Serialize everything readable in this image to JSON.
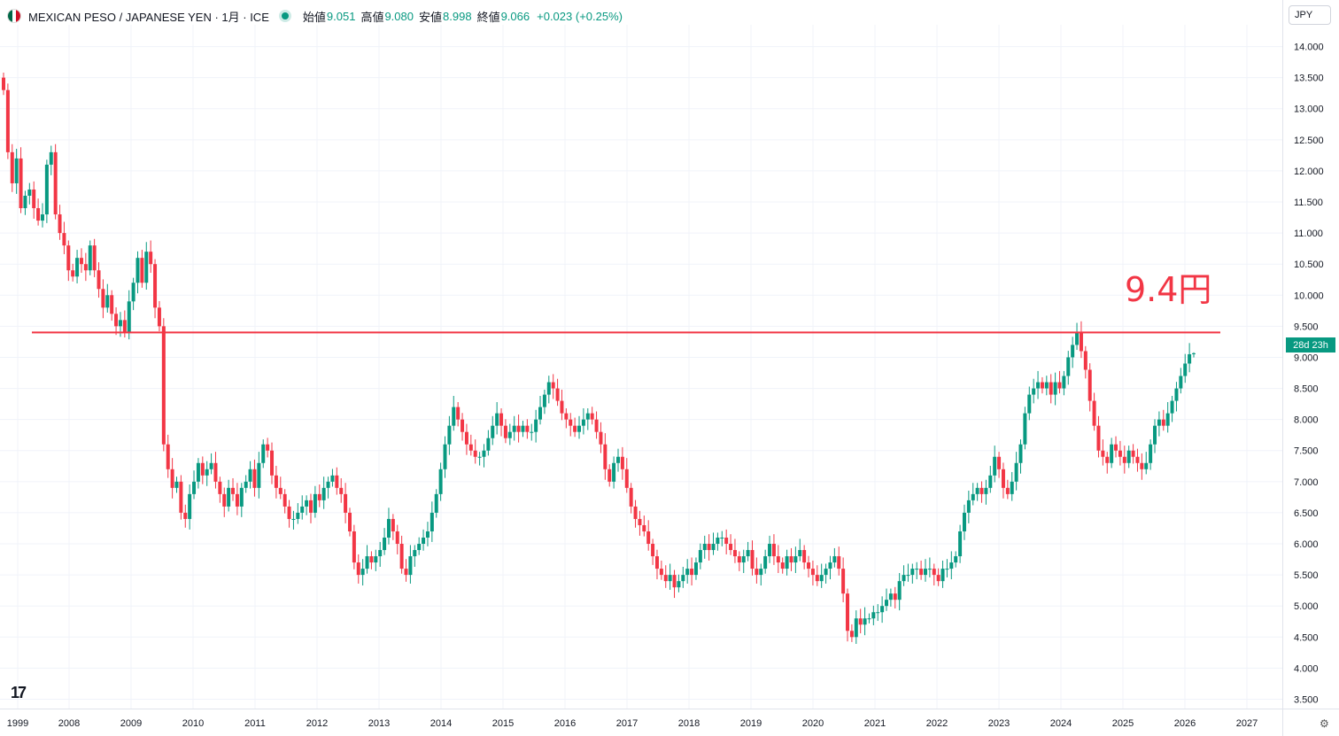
{
  "header": {
    "title": "MEXICAN PESO / JAPANESE YEN · 1月 · ICE",
    "open_label": "始値",
    "open": "9.051",
    "high_label": "高値",
    "high": "9.080",
    "low_label": "安値",
    "low": "8.998",
    "close_label": "終値",
    "close": "9.066",
    "change": "+0.023 (+0.25%)"
  },
  "currency": "JPY",
  "countdown": "28d 23h",
  "annotation": "9.4円",
  "logo": "17",
  "colors": {
    "up": "#089981",
    "down": "#f23645",
    "line": "#f23645"
  },
  "chart_data": {
    "type": "candlestick",
    "title": "MEXICAN PESO / JAPANESE YEN",
    "interval": "1月",
    "ylim": [
      3.35,
      14.35
    ],
    "yticks": [
      "3.500",
      "4.000",
      "4.500",
      "5.000",
      "5.500",
      "6.000",
      "6.500",
      "7.000",
      "7.500",
      "8.000",
      "8.500",
      "9.000",
      "9.500",
      "10.000",
      "10.500",
      "11.000",
      "11.500",
      "12.000",
      "12.500",
      "13.000",
      "13.500",
      "14.000"
    ],
    "xticks": [
      "1999",
      "2008",
      "2009",
      "2010",
      "2011",
      "2012",
      "2013",
      "2014",
      "2015",
      "2016",
      "2017",
      "2018",
      "2019",
      "2020",
      "2021",
      "2022",
      "2023",
      "2024",
      "2025",
      "2026",
      "2027"
    ],
    "xtick_years": [
      1999,
      2008,
      2009,
      2010,
      2011,
      2012,
      2013,
      2014,
      2015,
      2016,
      2017,
      2018,
      2019,
      2020,
      2021,
      2022,
      2023,
      2024,
      2025,
      2026,
      2027
    ],
    "hline": 9.4,
    "closes": [
      13.3,
      12.3,
      11.8,
      12.2,
      11.4,
      11.6,
      11.7,
      11.4,
      11.2,
      11.3,
      12.1,
      12.3,
      11.3,
      11.0,
      10.8,
      10.4,
      10.3,
      10.6,
      10.5,
      10.4,
      10.8,
      10.4,
      10.1,
      9.8,
      10.0,
      9.7,
      9.5,
      9.6,
      9.4,
      9.9,
      10.2,
      10.6,
      10.2,
      10.7,
      10.5,
      9.8,
      9.5,
      7.6,
      7.2,
      6.9,
      7.0,
      6.5,
      6.4,
      6.8,
      7.0,
      7.3,
      7.1,
      7.2,
      7.3,
      7.0,
      6.8,
      6.6,
      6.9,
      6.8,
      6.6,
      6.9,
      7.0,
      7.2,
      6.9,
      7.3,
      7.6,
      7.5,
      7.1,
      6.9,
      6.8,
      6.6,
      6.4,
      6.4,
      6.5,
      6.6,
      6.7,
      6.5,
      6.8,
      6.7,
      6.9,
      7.0,
      7.1,
      6.9,
      6.8,
      6.5,
      6.2,
      5.7,
      5.5,
      5.6,
      5.8,
      5.7,
      5.8,
      5.9,
      6.1,
      6.4,
      6.2,
      6.0,
      5.6,
      5.5,
      5.8,
      5.9,
      6.0,
      6.1,
      6.2,
      6.5,
      6.8,
      7.2,
      7.6,
      7.9,
      8.2,
      8.0,
      7.8,
      7.6,
      7.5,
      7.4,
      7.4,
      7.5,
      7.7,
      7.9,
      8.1,
      7.9,
      7.7,
      7.8,
      7.9,
      7.8,
      7.9,
      7.8,
      7.8,
      8.0,
      8.2,
      8.4,
      8.6,
      8.5,
      8.3,
      8.1,
      8.0,
      7.9,
      7.8,
      7.9,
      8.0,
      8.1,
      8.0,
      7.8,
      7.6,
      7.2,
      7.0,
      7.3,
      7.4,
      7.2,
      6.9,
      6.6,
      6.4,
      6.3,
      6.2,
      6.0,
      5.8,
      5.6,
      5.5,
      5.4,
      5.5,
      5.3,
      5.4,
      5.5,
      5.6,
      5.5,
      5.7,
      5.9,
      6.0,
      5.9,
      6.0,
      6.1,
      6.1,
      6.0,
      5.9,
      5.8,
      5.7,
      5.8,
      5.9,
      5.6,
      5.5,
      5.6,
      5.8,
      6.0,
      5.8,
      5.7,
      5.6,
      5.8,
      5.7,
      5.8,
      5.9,
      5.7,
      5.6,
      5.5,
      5.4,
      5.5,
      5.6,
      5.7,
      5.8,
      5.6,
      5.2,
      4.6,
      4.5,
      4.8,
      4.7,
      4.8,
      4.8,
      4.9,
      4.9,
      5.0,
      5.1,
      5.2,
      5.1,
      5.4,
      5.5,
      5.5,
      5.6,
      5.6,
      5.5,
      5.6,
      5.6,
      5.5,
      5.4,
      5.6,
      5.6,
      5.7,
      5.8,
      6.2,
      6.5,
      6.7,
      6.8,
      6.9,
      6.8,
      6.9,
      7.1,
      7.4,
      7.2,
      6.9,
      6.8,
      7.0,
      7.3,
      7.6,
      8.1,
      8.4,
      8.5,
      8.6,
      8.5,
      8.6,
      8.4,
      8.6,
      8.5,
      8.7,
      9.0,
      9.2,
      9.4,
      9.1,
      8.8,
      8.3,
      7.9,
      7.5,
      7.4,
      7.3,
      7.6,
      7.5,
      7.4,
      7.3,
      7.5,
      7.4,
      7.3,
      7.2,
      7.3,
      7.6,
      7.9,
      8.0,
      7.9,
      8.1,
      8.3,
      8.5,
      8.7,
      8.9,
      9.05,
      9.066
    ]
  }
}
